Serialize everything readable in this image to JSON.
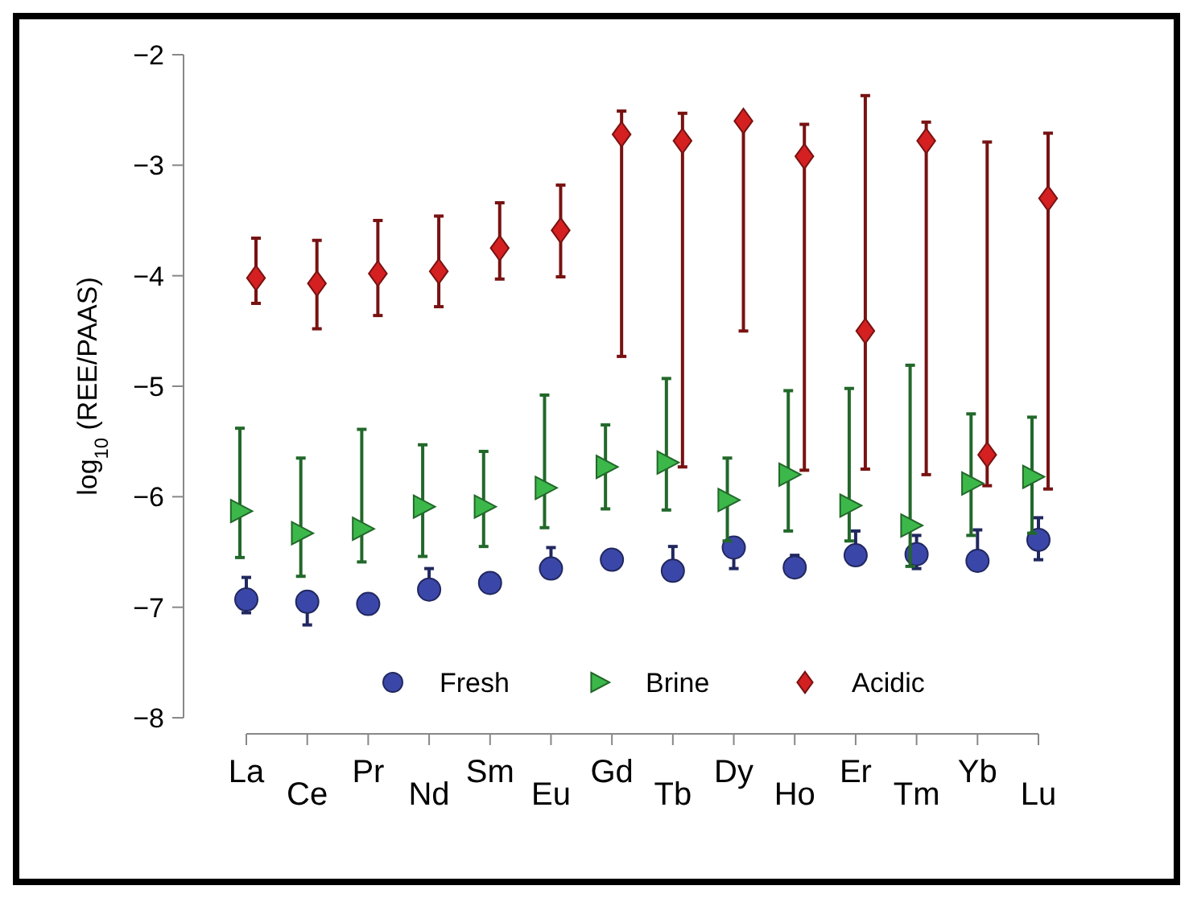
{
  "chart_data": {
    "type": "scatter",
    "ylabel": "log$_{10}$ (REE/PAAS)",
    "categories": [
      "La",
      "Ce",
      "Pr",
      "Nd",
      "Sm",
      "Eu",
      "Gd",
      "Tb",
      "Dy",
      "Ho",
      "Er",
      "Tm",
      "Yb",
      "Lu"
    ],
    "ylim": [
      -8,
      -2
    ],
    "yticks": [
      -8,
      -7,
      -6,
      -5,
      -4,
      -3,
      -2
    ],
    "legend": "bottom",
    "grid": false,
    "series": [
      {
        "name": "Fresh",
        "color": "#3b47a8",
        "marker": "circle",
        "values": [
          -6.93,
          -6.95,
          -6.97,
          -6.84,
          -6.78,
          -6.65,
          -6.57,
          -6.67,
          -6.46,
          -6.64,
          -6.53,
          -6.52,
          -6.58,
          -6.39
        ],
        "errors": [
          [
            -7.05,
            -6.73
          ],
          [
            -7.16,
            -6.95
          ],
          null,
          [
            -6.84,
            -6.65
          ],
          null,
          [
            -6.65,
            -6.46
          ],
          null,
          [
            -6.67,
            -6.45
          ],
          [
            -6.65,
            -6.46
          ],
          [
            -6.64,
            -6.53
          ],
          [
            -6.53,
            -6.31
          ],
          [
            -6.65,
            -6.35
          ],
          [
            -6.58,
            -6.3
          ],
          [
            -6.57,
            -6.19
          ]
        ]
      },
      {
        "name": "Brine",
        "color": "#3cb84a",
        "marker": "triangle",
        "values": [
          -6.13,
          -6.33,
          -6.29,
          -6.09,
          -6.09,
          -5.92,
          -5.73,
          -5.69,
          -6.03,
          -5.8,
          -6.08,
          -6.26,
          -5.88,
          -5.82
        ],
        "errors": [
          [
            -6.55,
            -5.38
          ],
          [
            -6.72,
            -5.65
          ],
          [
            -6.59,
            -5.39
          ],
          [
            -6.54,
            -5.53
          ],
          [
            -6.45,
            -5.59
          ],
          [
            -6.28,
            -5.08
          ],
          [
            -6.11,
            -5.35
          ],
          [
            -6.12,
            -4.93
          ],
          [
            -6.4,
            -5.65
          ],
          [
            -6.31,
            -5.04
          ],
          [
            -6.4,
            -5.02
          ],
          [
            -6.63,
            -4.81
          ],
          [
            -6.35,
            -5.25
          ],
          [
            -6.33,
            -5.28
          ]
        ]
      },
      {
        "name": "Acidic",
        "color": "#d42020",
        "marker": "diamond",
        "values": [
          -4.02,
          -4.07,
          -3.98,
          -3.96,
          -3.75,
          -3.59,
          -2.72,
          -2.78,
          -2.6,
          -2.92,
          -4.5,
          -2.78,
          -5.62,
          -3.3
        ],
        "errors": [
          [
            -4.25,
            -3.66
          ],
          [
            -4.48,
            -3.68
          ],
          [
            -4.36,
            -3.5
          ],
          [
            -4.28,
            -3.46
          ],
          [
            -4.03,
            -3.34
          ],
          [
            -4.01,
            -3.18
          ],
          [
            -4.73,
            -2.51
          ],
          [
            -5.73,
            -2.53
          ],
          [
            -4.5,
            -2.57
          ],
          [
            -5.76,
            -2.63
          ],
          [
            -5.75,
            -2.37
          ],
          [
            -5.8,
            -2.61
          ],
          [
            -5.9,
            -2.79
          ],
          [
            -5.93,
            -2.71
          ]
        ]
      }
    ]
  }
}
